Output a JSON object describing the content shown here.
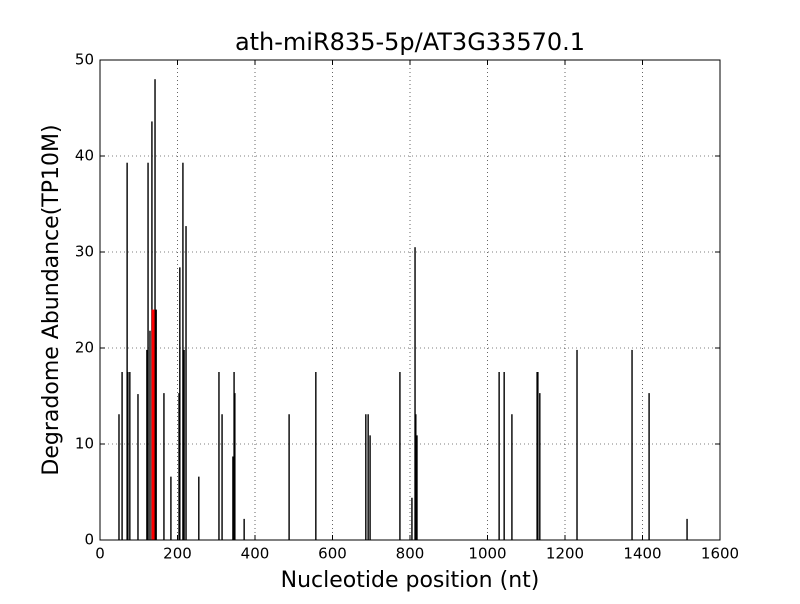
{
  "chart_data": {
    "type": "bar",
    "title": "ath-miR835-5p/AT3G33570.1",
    "xlabel": "Nucleotide position (nt)",
    "ylabel": "Degradome Abundance(TP10M)",
    "xlim": [
      0,
      1600
    ],
    "ylim": [
      0,
      50
    ],
    "xticks": [
      0,
      200,
      400,
      600,
      800,
      1000,
      1200,
      1400,
      1600
    ],
    "yticks": [
      0,
      10,
      20,
      30,
      40,
      50
    ],
    "grid": true,
    "series": [
      {
        "color": "#000000",
        "x": [
          49,
          57,
          70,
          72,
          77,
          98,
          121,
          124,
          129,
          134,
          142,
          145,
          165,
          183,
          204,
          206,
          214,
          217,
          222,
          255,
          307,
          315,
          343,
          346,
          348,
          372,
          488,
          557,
          686,
          692,
          697,
          774,
          805,
          813,
          815,
          818,
          1030,
          1043,
          1063,
          1128,
          1130,
          1135,
          1231,
          1373,
          1417,
          1515
        ],
        "values": [
          13.1,
          17.5,
          39.3,
          17.5,
          17.5,
          15.2,
          19.8,
          39.3,
          21.8,
          43.6,
          48.0,
          24.0,
          15.3,
          6.6,
          15.3,
          28.4,
          39.3,
          19.8,
          32.7,
          6.6,
          17.5,
          13.1,
          8.7,
          17.5,
          15.3,
          2.2,
          13.1,
          17.5,
          13.1,
          13.1,
          10.9,
          17.5,
          4.4,
          30.5,
          13.1,
          10.9,
          17.5,
          17.5,
          13.1,
          17.5,
          17.5,
          15.3,
          19.8,
          19.8,
          15.3,
          2.2
        ]
      },
      {
        "color": "#ff0000",
        "x": [
          137
        ],
        "values": [
          24.0
        ]
      }
    ]
  }
}
